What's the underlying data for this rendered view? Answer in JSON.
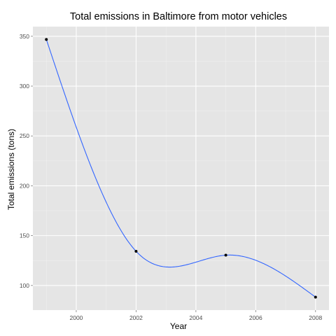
{
  "chart_data": {
    "type": "line",
    "title": "Total emissions in Baltimore from motor vehicles",
    "xlabel": "Year",
    "ylabel": "Total emissions (tons)",
    "x": [
      1999,
      2002,
      2005,
      2008
    ],
    "y": [
      346.8,
      134.3,
      130.4,
      88.3
    ],
    "xlim": [
      1998.55,
      2008.45
    ],
    "ylim": [
      75.3,
      359.7
    ],
    "xticks": [
      2000,
      2002,
      2004,
      2006,
      2008
    ],
    "xtick_labels": [
      "2000",
      "2002",
      "2004",
      "2006",
      "2008"
    ],
    "yticks": [
      100,
      150,
      200,
      250,
      300,
      350
    ],
    "ytick_labels": [
      "100",
      "150",
      "200",
      "250",
      "300",
      "350"
    ],
    "grid": true,
    "smooth_line": true,
    "colors": {
      "line": "#3366ff",
      "points": "#000000",
      "panel": "#e5e5e5",
      "grid": "#ffffff"
    }
  }
}
